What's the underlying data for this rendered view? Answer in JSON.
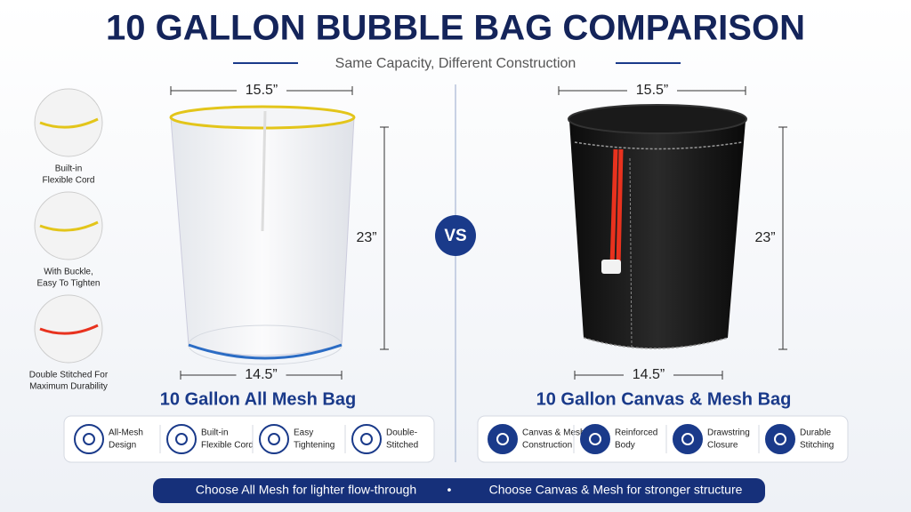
{
  "header": {
    "title": "10 GALLON BUBBLE BAG COMPARISON",
    "subtitle": "Same Capacity, Different Construction"
  },
  "vs": "VS",
  "left": {
    "top_width": "15.5”",
    "height": "23”",
    "bottom_width": "14.5”",
    "name": "10 Gallon All Mesh Bag",
    "callouts": [
      [
        "Built-in",
        "Flexible Cord"
      ],
      [
        "With Buckle,",
        "Easy To Tighten"
      ],
      [
        "Double Stitched For",
        "Maximum Durability"
      ]
    ],
    "features": [
      [
        "All-Mesh",
        "Design"
      ],
      [
        "Built-in",
        "Flexible Cord"
      ],
      [
        "Easy",
        "Tightening"
      ],
      [
        "Double-",
        "Stitched"
      ]
    ]
  },
  "right": {
    "top_width": "15.5”",
    "height": "23”",
    "bottom_width": "14.5”",
    "name": "10 Gallon Canvas & Mesh Bag",
    "features": [
      [
        "Canvas & Mesh",
        "Construction"
      ],
      [
        "Reinforced",
        "Body"
      ],
      [
        "Drawstring",
        "Closure"
      ],
      [
        "Durable",
        "Stitching"
      ]
    ]
  },
  "footer": {
    "left": "Choose All Mesh for lighter flow-through",
    "separator": "•",
    "right": "Choose Canvas & Mesh for stronger structure"
  }
}
